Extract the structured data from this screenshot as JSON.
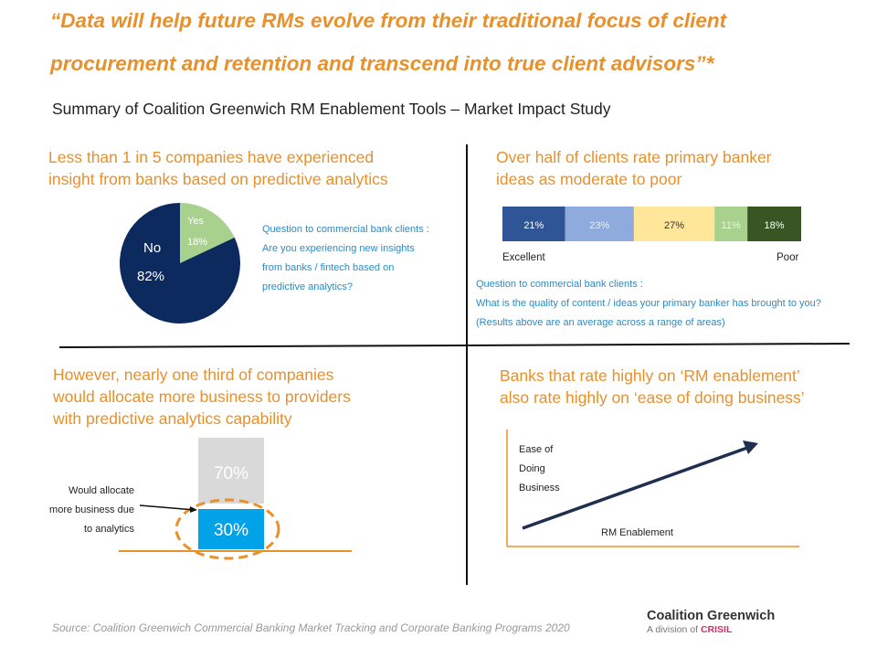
{
  "title": {
    "line1": "“Data will help future RMs evolve from their traditional focus of client",
    "line2": "procurement and retention and transcend into true client advisors”*"
  },
  "subtitle": "Summary of Coalition Greenwich RM Enablement Tools – Market Impact Study",
  "q1": {
    "heading1": "Less than 1 in 5 companies have experienced",
    "heading2": "insight from banks based on predictive analytics",
    "question": [
      "Question to commercial bank clients :",
      "Are you experiencing new insights",
      "from banks / fintech based on",
      "predictive analytics?"
    ]
  },
  "q2": {
    "heading1": "Over half of clients rate primary banker",
    "heading2": "ideas as moderate to poor",
    "left_label": "Excellent",
    "right_label": "Poor",
    "question": [
      "Question to commercial bank clients :",
      "What is the quality of content / ideas your primary banker has brought to you?",
      "(Results above are an average across a range of areas)"
    ]
  },
  "q3": {
    "heading": [
      "However, nearly one third of companies",
      "would allocate more business to providers",
      "with predictive analytics capability"
    ],
    "annotation": [
      "Would allocate",
      "more business due",
      "to analytics"
    ],
    "top_label": "70%",
    "bottom_label": "30%"
  },
  "q4": {
    "heading1": "Banks that rate highly on ‘RM enablement’",
    "heading2": "also rate highly on ‘ease of doing business’",
    "y_label": [
      "Ease of",
      "Doing",
      "Business"
    ],
    "x_label": "RM Enablement"
  },
  "footer": {
    "source": "Source: Coalition Greenwich Commercial Banking Market Tracking and Corporate Banking Programs 2020",
    "logo_name": "Coalition Greenwich",
    "logo_division": "A division of",
    "logo_brand": "CRISIL"
  },
  "colors": {
    "accent": "#e8902a",
    "question": "#2e8bc0"
  },
  "chart_data": [
    {
      "type": "pie",
      "categories": [
        "Yes",
        "No"
      ],
      "values": [
        18,
        82
      ],
      "labels": [
        "18%",
        "82%"
      ],
      "colors": [
        "#a9d18e",
        "#0d2a5e"
      ]
    },
    {
      "type": "bar",
      "stacked": true,
      "orientation": "horizontal",
      "values": [
        21,
        23,
        27,
        11,
        18
      ],
      "labels": [
        "21%",
        "23%",
        "27%",
        "11%",
        "18%"
      ],
      "colors": [
        "#2f5597",
        "#8faadc",
        "#ffe699",
        "#a9d18e",
        "#375623"
      ]
    },
    {
      "type": "bar",
      "stacked": true,
      "values": [
        30,
        70
      ],
      "labels": [
        "30%",
        "70%"
      ],
      "colors": [
        "#00a2e8",
        "#d9d9d9"
      ]
    }
  ]
}
